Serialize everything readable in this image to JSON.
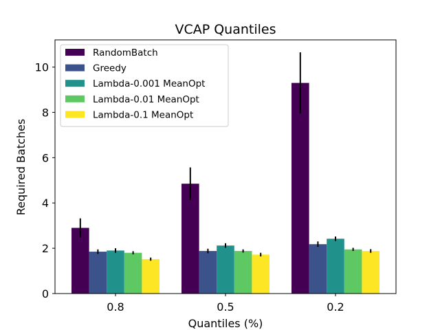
{
  "chart_data": {
    "type": "bar",
    "title": "VCAP Quantiles",
    "xlabel": "Quantiles (%)",
    "ylabel": "Required Batches",
    "categories": [
      "0.8",
      "0.5",
      "0.2"
    ],
    "ylim": [
      0,
      11.2
    ],
    "yticks": [
      "0",
      "2",
      "4",
      "6",
      "8",
      "10"
    ],
    "legend_position": "upper-left",
    "series": [
      {
        "name": "RandomBatch",
        "color": "#440154",
        "values": [
          2.9,
          4.85,
          9.3
        ],
        "errors": [
          0.42,
          0.72,
          1.35
        ]
      },
      {
        "name": "Greedy",
        "color": "#3b528b",
        "values": [
          1.85,
          1.88,
          2.18
        ],
        "errors": [
          0.1,
          0.1,
          0.12
        ]
      },
      {
        "name": "Lambda-0.001 MeanOpt",
        "color": "#21918c",
        "values": [
          1.9,
          2.12,
          2.42
        ],
        "errors": [
          0.1,
          0.1,
          0.1
        ]
      },
      {
        "name": "Lambda-0.01 MeanOpt",
        "color": "#5ec962",
        "values": [
          1.8,
          1.88,
          1.95
        ],
        "errors": [
          0.07,
          0.07,
          0.07
        ]
      },
      {
        "name": "Lambda-0.1 MeanOpt",
        "color": "#fde725",
        "values": [
          1.52,
          1.72,
          1.88
        ],
        "errors": [
          0.07,
          0.08,
          0.08
        ]
      }
    ]
  }
}
